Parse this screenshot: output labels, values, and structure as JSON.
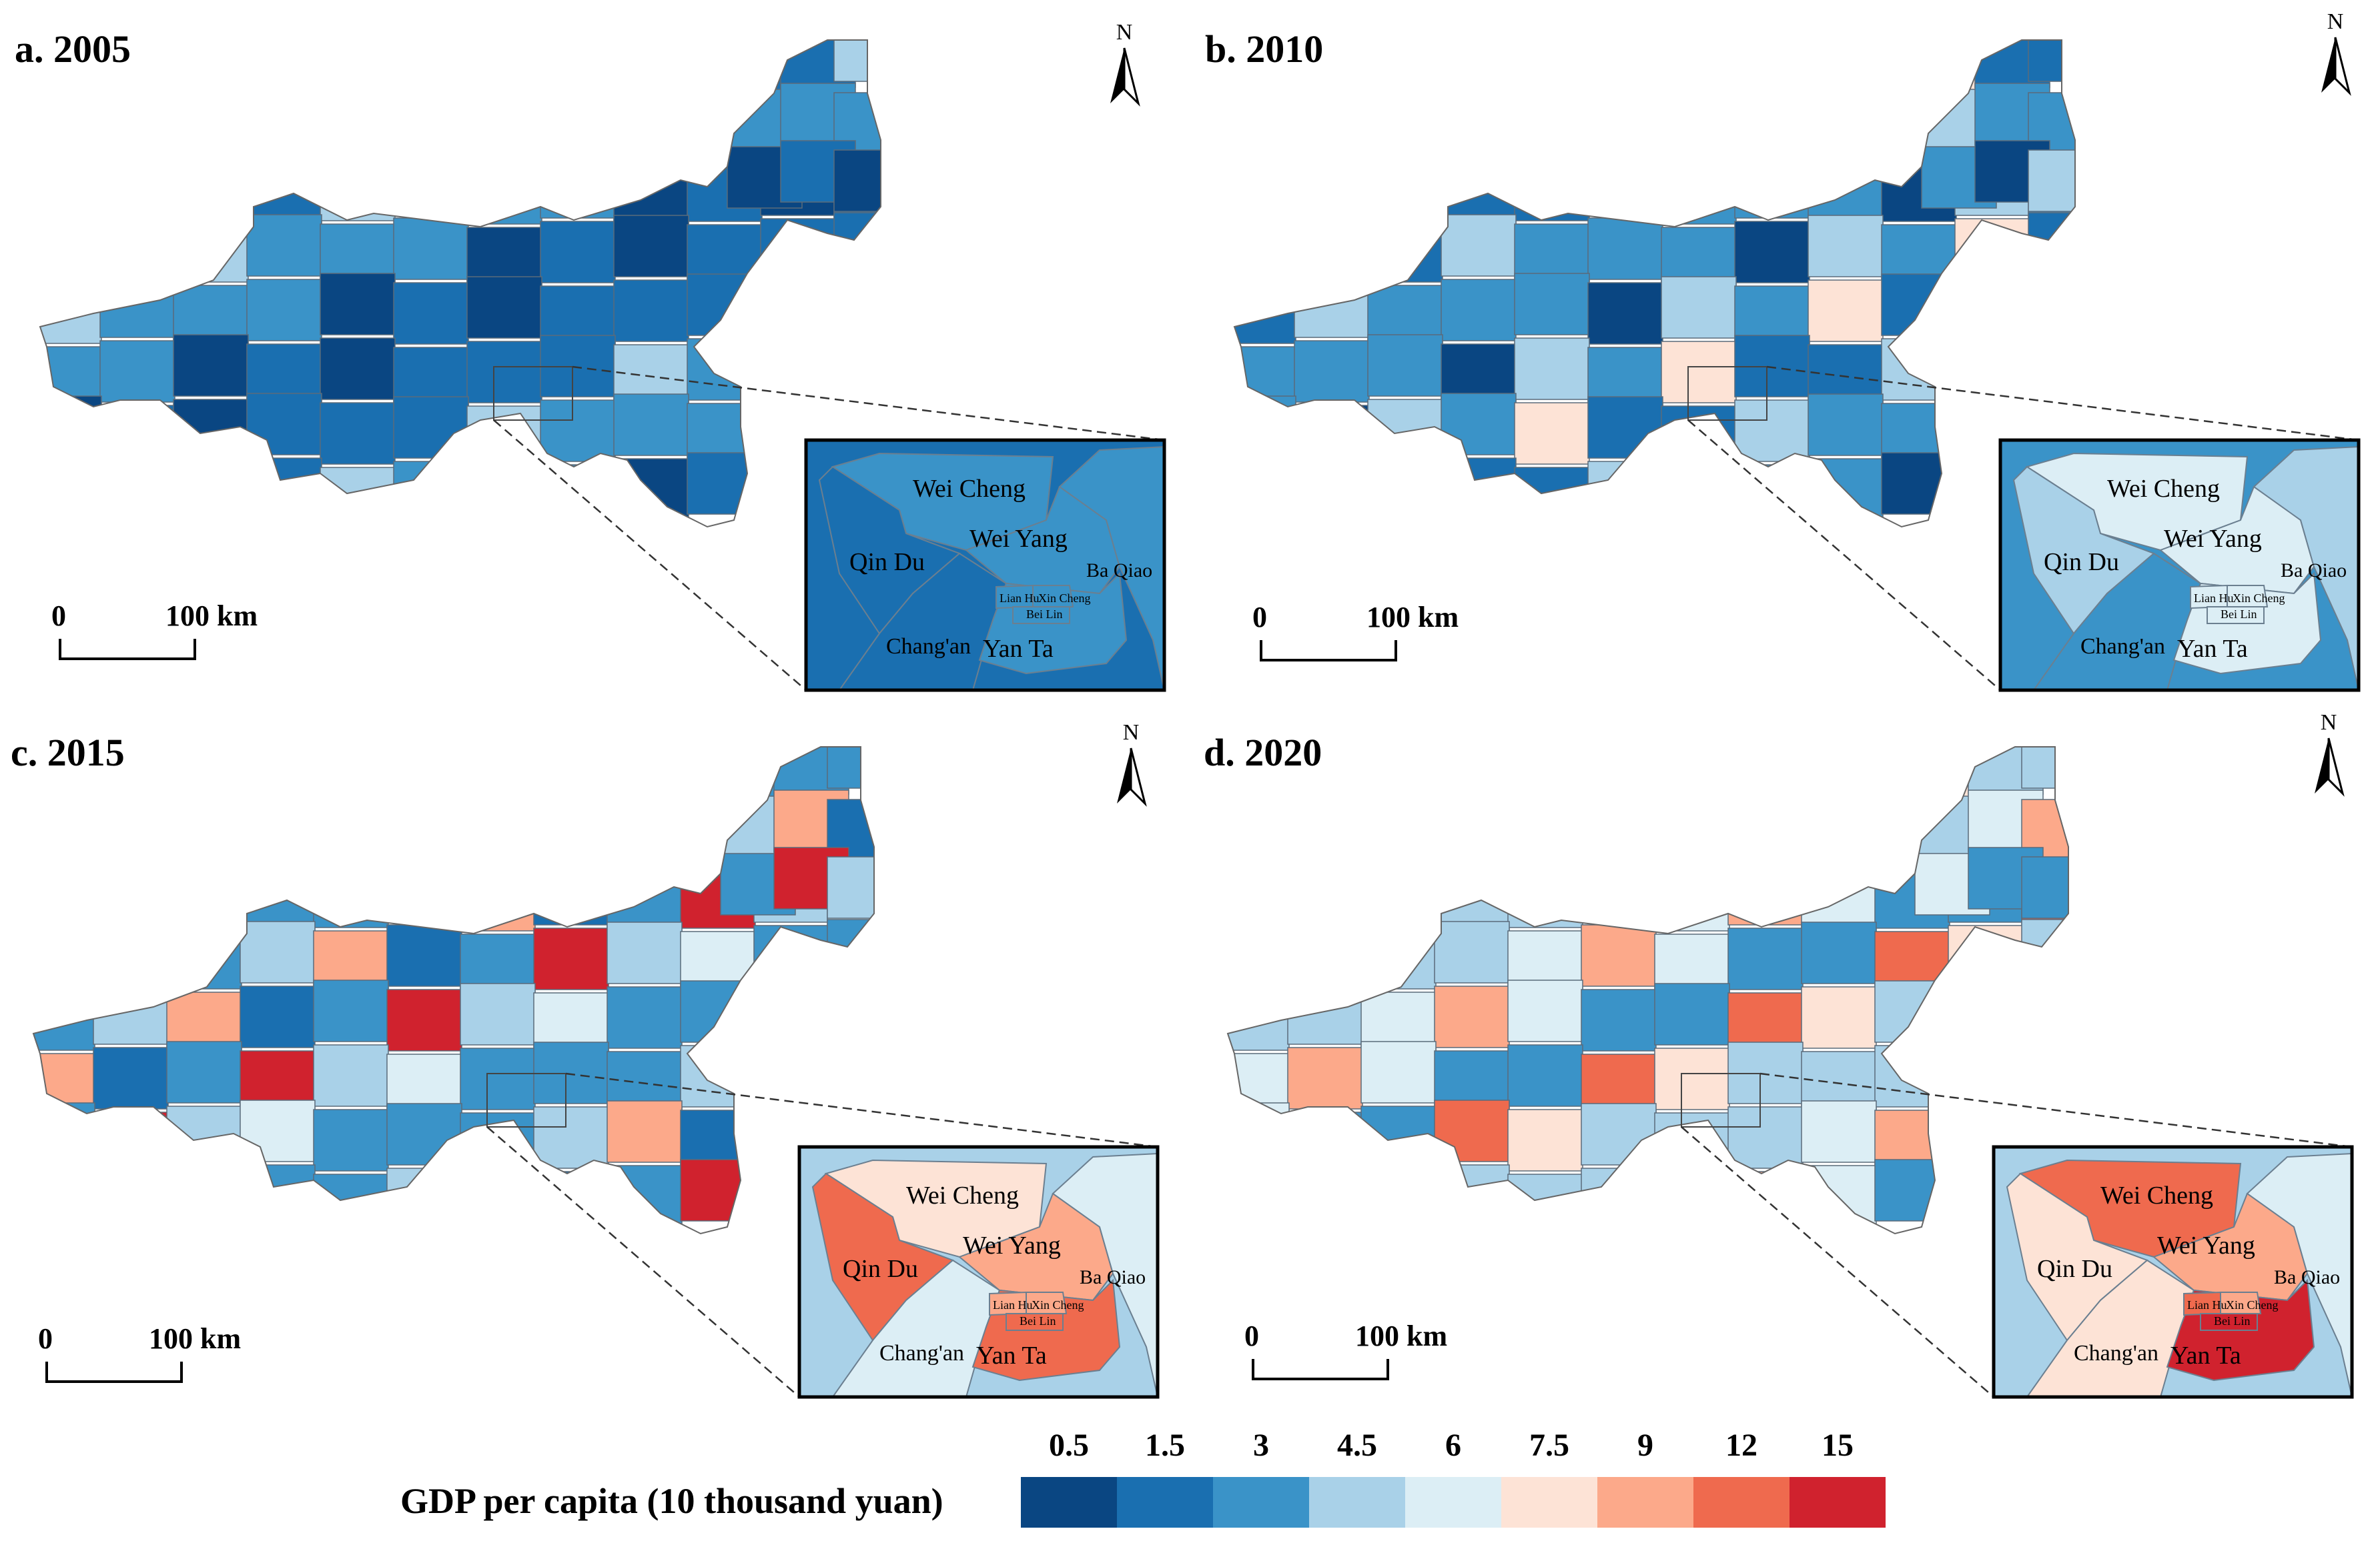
{
  "figure": {
    "panels": [
      {
        "title": "a. 2005",
        "north": "N",
        "scale_zero": "0",
        "scale_distance": "100 km",
        "north_icon": "north-arrow-icon",
        "inset": {
          "fills": [
            "#1a6fb0",
            "#3a93c8",
            "#1a6fb0",
            "#3a93c8",
            "#3a93c8",
            "#1a6fb0",
            "#3a93c8",
            "#3a93c8",
            "#3a93c8",
            "#3a93c8"
          ]
        },
        "palette": [
          "#0a4682",
          "#1a6fb0",
          "#3a93c8",
          "#1a6fb0",
          "#1a6fb0",
          "#3a93c8",
          "#0a4682",
          "#1a6fb0",
          "#a9d1e8",
          "#3a93c8"
        ]
      },
      {
        "title": "b. 2010",
        "north": "N",
        "scale_zero": "0",
        "scale_distance": "100 km",
        "north_icon": "north-arrow-icon",
        "inset": {
          "fills": [
            "#3a93c8",
            "#dceef5",
            "#a9d1e8",
            "#dceef5",
            "#a9d1e8",
            "#3a93c8",
            "#dceef5",
            "#dceef5",
            "#dceef5",
            "#dceef5"
          ]
        },
        "palette": [
          "#3a93c8",
          "#1a6fb0",
          "#3a93c8",
          "#a9d1e8",
          "#1a6fb0",
          "#3a93c8",
          "#0a4682",
          "#fde3d6",
          "#a9d1e8",
          "#3a93c8"
        ]
      },
      {
        "title": "c. 2015",
        "north": "N",
        "scale_zero": "0",
        "scale_distance": "100 km",
        "north_icon": "north-arrow-icon",
        "inset": {
          "fills": [
            "#a9d1e8",
            "#fde3d6",
            "#ef6a4e",
            "#fca98a",
            "#dceef5",
            "#dceef5",
            "#ef6a4e",
            "#fca98a",
            "#fca98a",
            "#ef6a4e"
          ]
        },
        "palette": [
          "#3a93c8",
          "#a9d1e8",
          "#3a93c8",
          "#dceef5",
          "#3a93c8",
          "#1a6fb0",
          "#a9d1e8",
          "#3a93c8",
          "#fca98a",
          "#d0222e"
        ]
      },
      {
        "title": "d. 2020",
        "north": "N",
        "scale_zero": "0",
        "scale_distance": "100 km",
        "north_icon": "north-arrow-icon",
        "inset": {
          "fills": [
            "#a9d1e8",
            "#ef6a4e",
            "#fde3d6",
            "#fca98a",
            "#dceef5",
            "#fde3d6",
            "#d0222e",
            "#ef6a4e",
            "#fca98a",
            "#d0222e"
          ]
        },
        "palette": [
          "#a9d1e8",
          "#dceef5",
          "#3a93c8",
          "#fde3d6",
          "#a9d1e8",
          "#dceef5",
          "#ef6a4e",
          "#a9d1e8",
          "#fca98a",
          "#3a93c8"
        ]
      }
    ],
    "inset_labels": [
      "Wei Cheng",
      "Wei Yang",
      "Qin Du",
      "Ba Qiao",
      "Lian Hu",
      "Xin Cheng",
      "Bei Lin",
      "Chang'an",
      "Yan Ta"
    ],
    "legend": {
      "title": "GDP per capita (10 thousand yuan)",
      "ticks": [
        "0.5",
        "1.5",
        "3",
        "4.5",
        "6",
        "7.5",
        "9",
        "12",
        "15"
      ],
      "colors": [
        "#0a4682",
        "#1a6fb0",
        "#3a93c8",
        "#a9d1e8",
        "#dceef5",
        "#fde3d6",
        "#fca98a",
        "#ef6a4e",
        "#d0222e"
      ]
    }
  }
}
